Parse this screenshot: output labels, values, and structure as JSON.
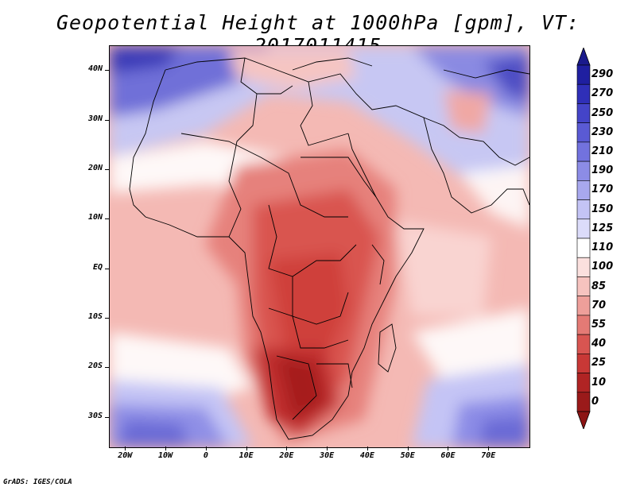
{
  "title": "Geopotential Height at 1000hPa [gpm], VT: 2017011415",
  "credit": "GrADS: IGES/COLA",
  "map": {
    "lon_range": [
      -24,
      80
    ],
    "lat_range": [
      -36,
      45
    ],
    "y_ticks": [
      {
        "lat": 40,
        "label": "40N"
      },
      {
        "lat": 30,
        "label": "30N"
      },
      {
        "lat": 20,
        "label": "20N"
      },
      {
        "lat": 10,
        "label": "10N"
      },
      {
        "lat": 0,
        "label": "EQ"
      },
      {
        "lat": -10,
        "label": "10S"
      },
      {
        "lat": -20,
        "label": "20S"
      },
      {
        "lat": -30,
        "label": "30S"
      }
    ],
    "x_ticks": [
      {
        "lon": -20,
        "label": "20W"
      },
      {
        "lon": -10,
        "label": "10W"
      },
      {
        "lon": 0,
        "label": "0"
      },
      {
        "lon": 10,
        "label": "10E"
      },
      {
        "lon": 20,
        "label": "20E"
      },
      {
        "lon": 30,
        "label": "30E"
      },
      {
        "lon": 40,
        "label": "40E"
      },
      {
        "lon": 50,
        "label": "50E"
      },
      {
        "lon": 60,
        "label": "60E"
      },
      {
        "lon": 70,
        "label": "70E"
      }
    ]
  },
  "colorbar": {
    "levels": [
      "290",
      "270",
      "250",
      "230",
      "210",
      "190",
      "170",
      "150",
      "125",
      "110",
      "100",
      "85",
      "70",
      "55",
      "40",
      "25",
      "10",
      "0"
    ],
    "colors": [
      "#1f1fa0",
      "#2f2fb8",
      "#4444c8",
      "#5a5ad4",
      "#7272de",
      "#8c8ce6",
      "#a8a8ee",
      "#c4c4f5",
      "#dcdcfa",
      "#ffffff",
      "#fbe0de",
      "#f6c3bf",
      "#ee9f9a",
      "#e47a75",
      "#d85551",
      "#c83836",
      "#b02424",
      "#9a1a1a"
    ],
    "cap_top_color": "#1a1a8c",
    "cap_bottom_color": "#8c1414"
  }
}
